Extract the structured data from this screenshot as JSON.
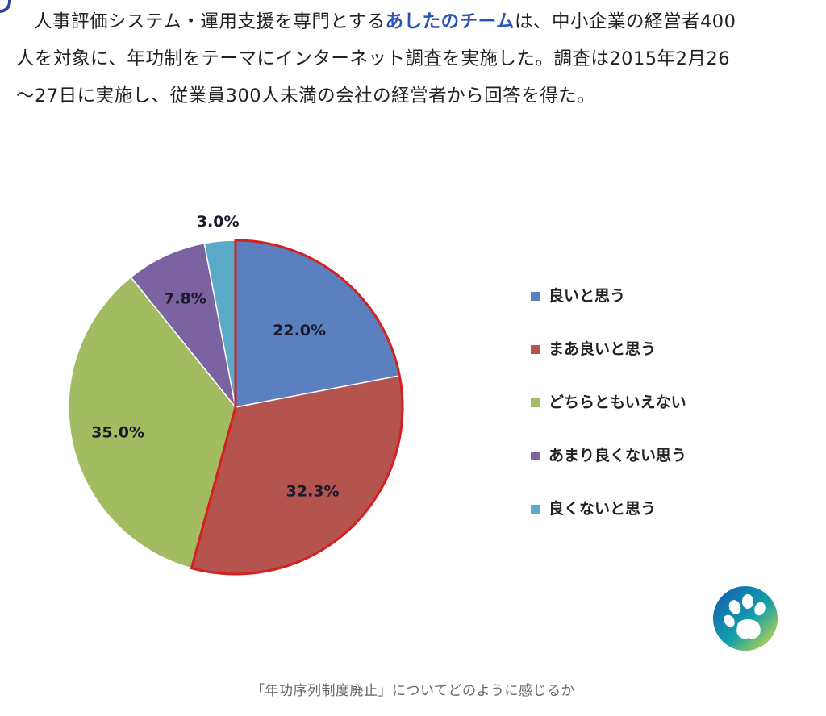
{
  "article": {
    "line1_prefix": "人事評価システム・運用支援を専門とする",
    "line1_link": "あしたのチーム",
    "line1_suffix": "は、中小企業の経営者400",
    "line2": "人を対象に、年功制をテーマにインターネット調査を実施した。調査は2015年2月26",
    "line3": "〜27日に実施し、従業員300人未満の会社の経営者から回答を得た。",
    "link_color": "#2a53b5"
  },
  "chart_data": {
    "type": "pie",
    "title": "",
    "start_angle_deg": 0,
    "direction": "clockwise",
    "highlighted_slice": 1,
    "slices": [
      {
        "label": "良いと思う",
        "value": 22.0,
        "value_label": "22.0%",
        "color": "#5b7fbf"
      },
      {
        "label": "まあ良いと思う",
        "value": 32.3,
        "value_label": "32.3%",
        "color": "#b5534f"
      },
      {
        "label": "どちらともいえない",
        "value": 35.0,
        "value_label": "35.0%",
        "color": "#a3bc62"
      },
      {
        "label": "あまり良くない思う",
        "value": 7.8,
        "value_label": "7.8%",
        "color": "#7b62a0"
      },
      {
        "label": "良くないと思う",
        "value": 3.0,
        "value_label": "3.0%",
        "color": "#5aaac8"
      }
    ],
    "legend_position": "right",
    "highlight_color": "#d42020"
  },
  "badge": {
    "icon": "paw-icon"
  },
  "caption": "「年功序列制度廃止」についてどのように感じるか"
}
